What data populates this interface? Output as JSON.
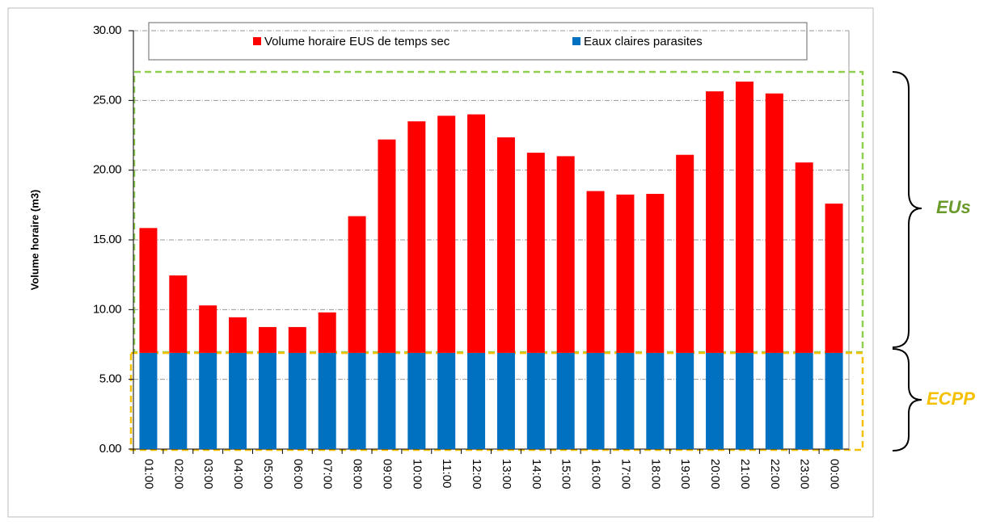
{
  "chart_data": {
    "type": "stacked_bar",
    "y_label": "Volume horaire (m3)",
    "categories": [
      "01:00",
      "02:00",
      "03:00",
      "04:00",
      "05:00",
      "06:00",
      "07:00",
      "08:00",
      "09:00",
      "10:00",
      "11:00",
      "12:00",
      "13:00",
      "14:00",
      "15:00",
      "16:00",
      "17:00",
      "18:00",
      "19:00",
      "20:00",
      "21:00",
      "22:00",
      "23:00",
      "00:00"
    ],
    "series": [
      {
        "name": "Volume horaire EUS de temps sec",
        "color": "#ff0000",
        "values": [
          8.95,
          5.55,
          3.4,
          2.55,
          1.85,
          1.85,
          2.9,
          9.8,
          15.3,
          16.6,
          17.0,
          17.1,
          15.45,
          14.35,
          14.1,
          11.6,
          11.35,
          11.4,
          14.2,
          18.75,
          19.45,
          18.6,
          13.65,
          10.7
        ]
      },
      {
        "name": "Eaux claires parasites",
        "color": "#0070c0",
        "values": [
          6.9,
          6.9,
          6.9,
          6.9,
          6.9,
          6.9,
          6.9,
          6.9,
          6.9,
          6.9,
          6.9,
          6.9,
          6.9,
          6.9,
          6.9,
          6.9,
          6.9,
          6.9,
          6.9,
          6.9,
          6.9,
          6.9,
          6.9,
          6.9
        ]
      }
    ],
    "ylim": [
      0,
      30
    ],
    "yticks": [
      {
        "value": 0,
        "label": "0.00"
      },
      {
        "value": 5,
        "label": "5.00"
      },
      {
        "value": 10,
        "label": "10.00"
      },
      {
        "value": 15,
        "label": "15.00"
      },
      {
        "value": 20,
        "label": "20.00"
      },
      {
        "value": 25,
        "label": "25.00"
      },
      {
        "value": 30,
        "label": "30.00"
      }
    ],
    "grid": true,
    "annotations": [
      "EUs",
      "ECPP"
    ]
  }
}
